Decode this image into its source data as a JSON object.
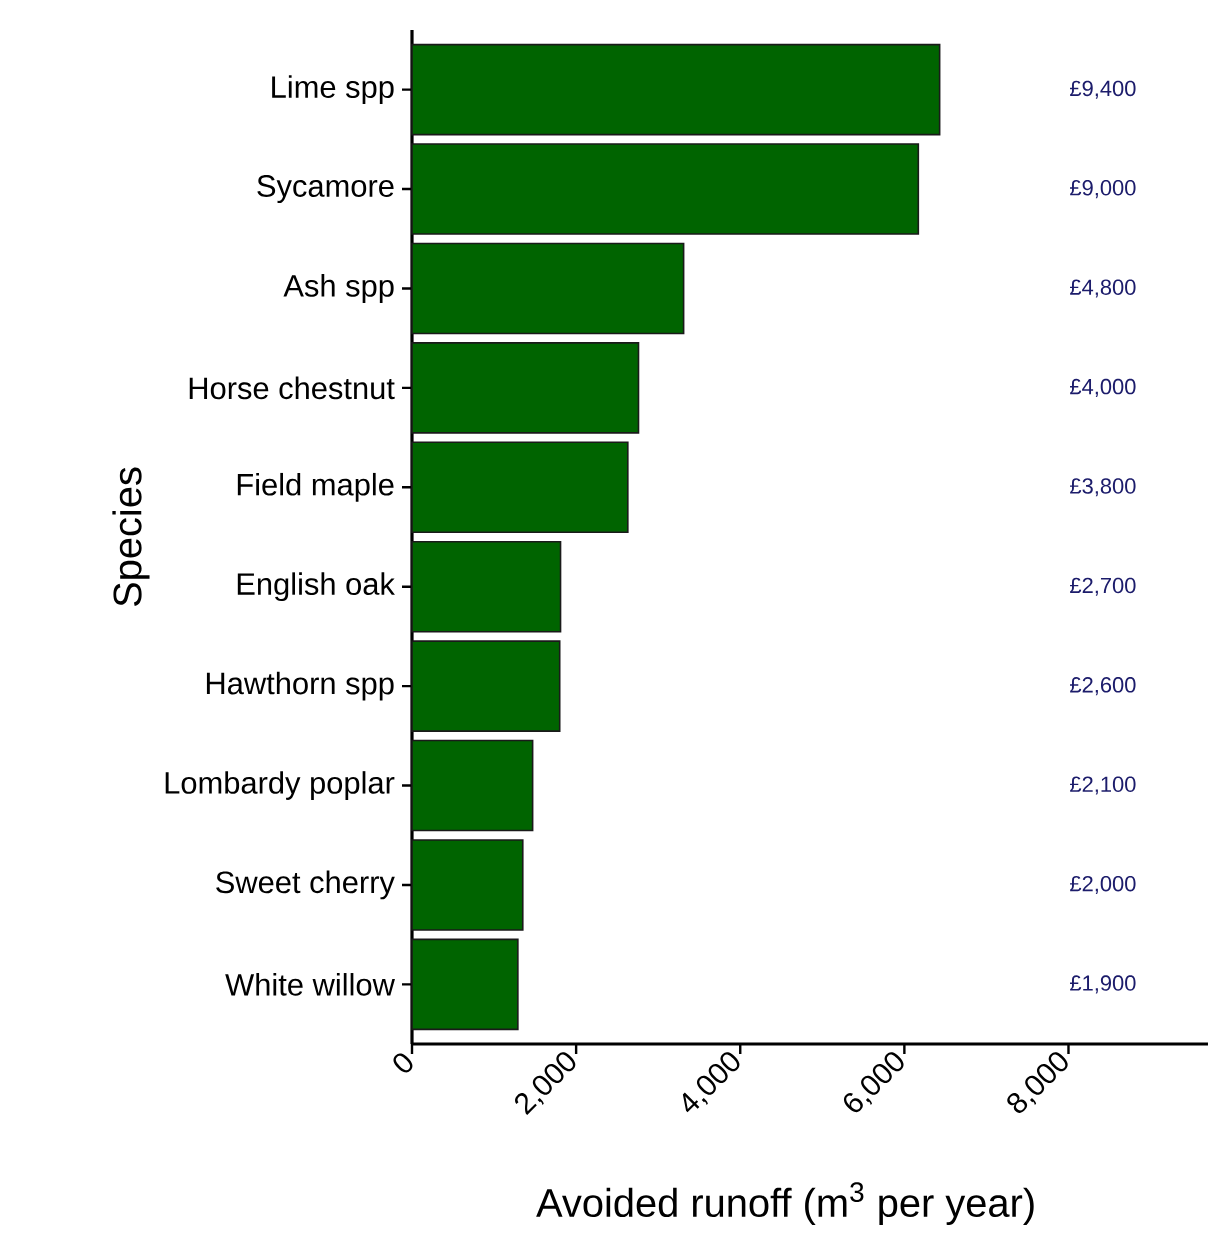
{
  "chart_data": {
    "type": "bar",
    "orientation": "horizontal",
    "categories": [
      "Lime spp",
      "Sycamore",
      "Ash spp",
      "Horse chestnut",
      "Field maple",
      "English oak",
      "Hawthorn spp",
      "Lombardy poplar",
      "Sweet cherry",
      "White willow"
    ],
    "values": [
      6430,
      6170,
      3310,
      2760,
      2630,
      1810,
      1800,
      1470,
      1350,
      1290
    ],
    "color": "#006400",
    "xlim": [
      0,
      9700
    ],
    "xticks": [
      0,
      {
        "value": 2000,
        "label": "2,000"
      },
      {
        "value": 4000,
        "label": "4,000"
      },
      {
        "value": 6000,
        "label": "6,000"
      },
      {
        "value": 8000,
        "label": "8,000"
      }
    ],
    "xlabel": "Avoided runoff (m$^{3}$ per year)",
    "ylabel": "Species",
    "grid": false,
    "annotations": [
      "£9,400",
      "£9,000",
      "£4,800",
      "£4,000",
      "£3,800",
      "£2,700",
      "£2,600",
      "£2,100",
      "£2,000",
      "£1,900"
    ]
  }
}
